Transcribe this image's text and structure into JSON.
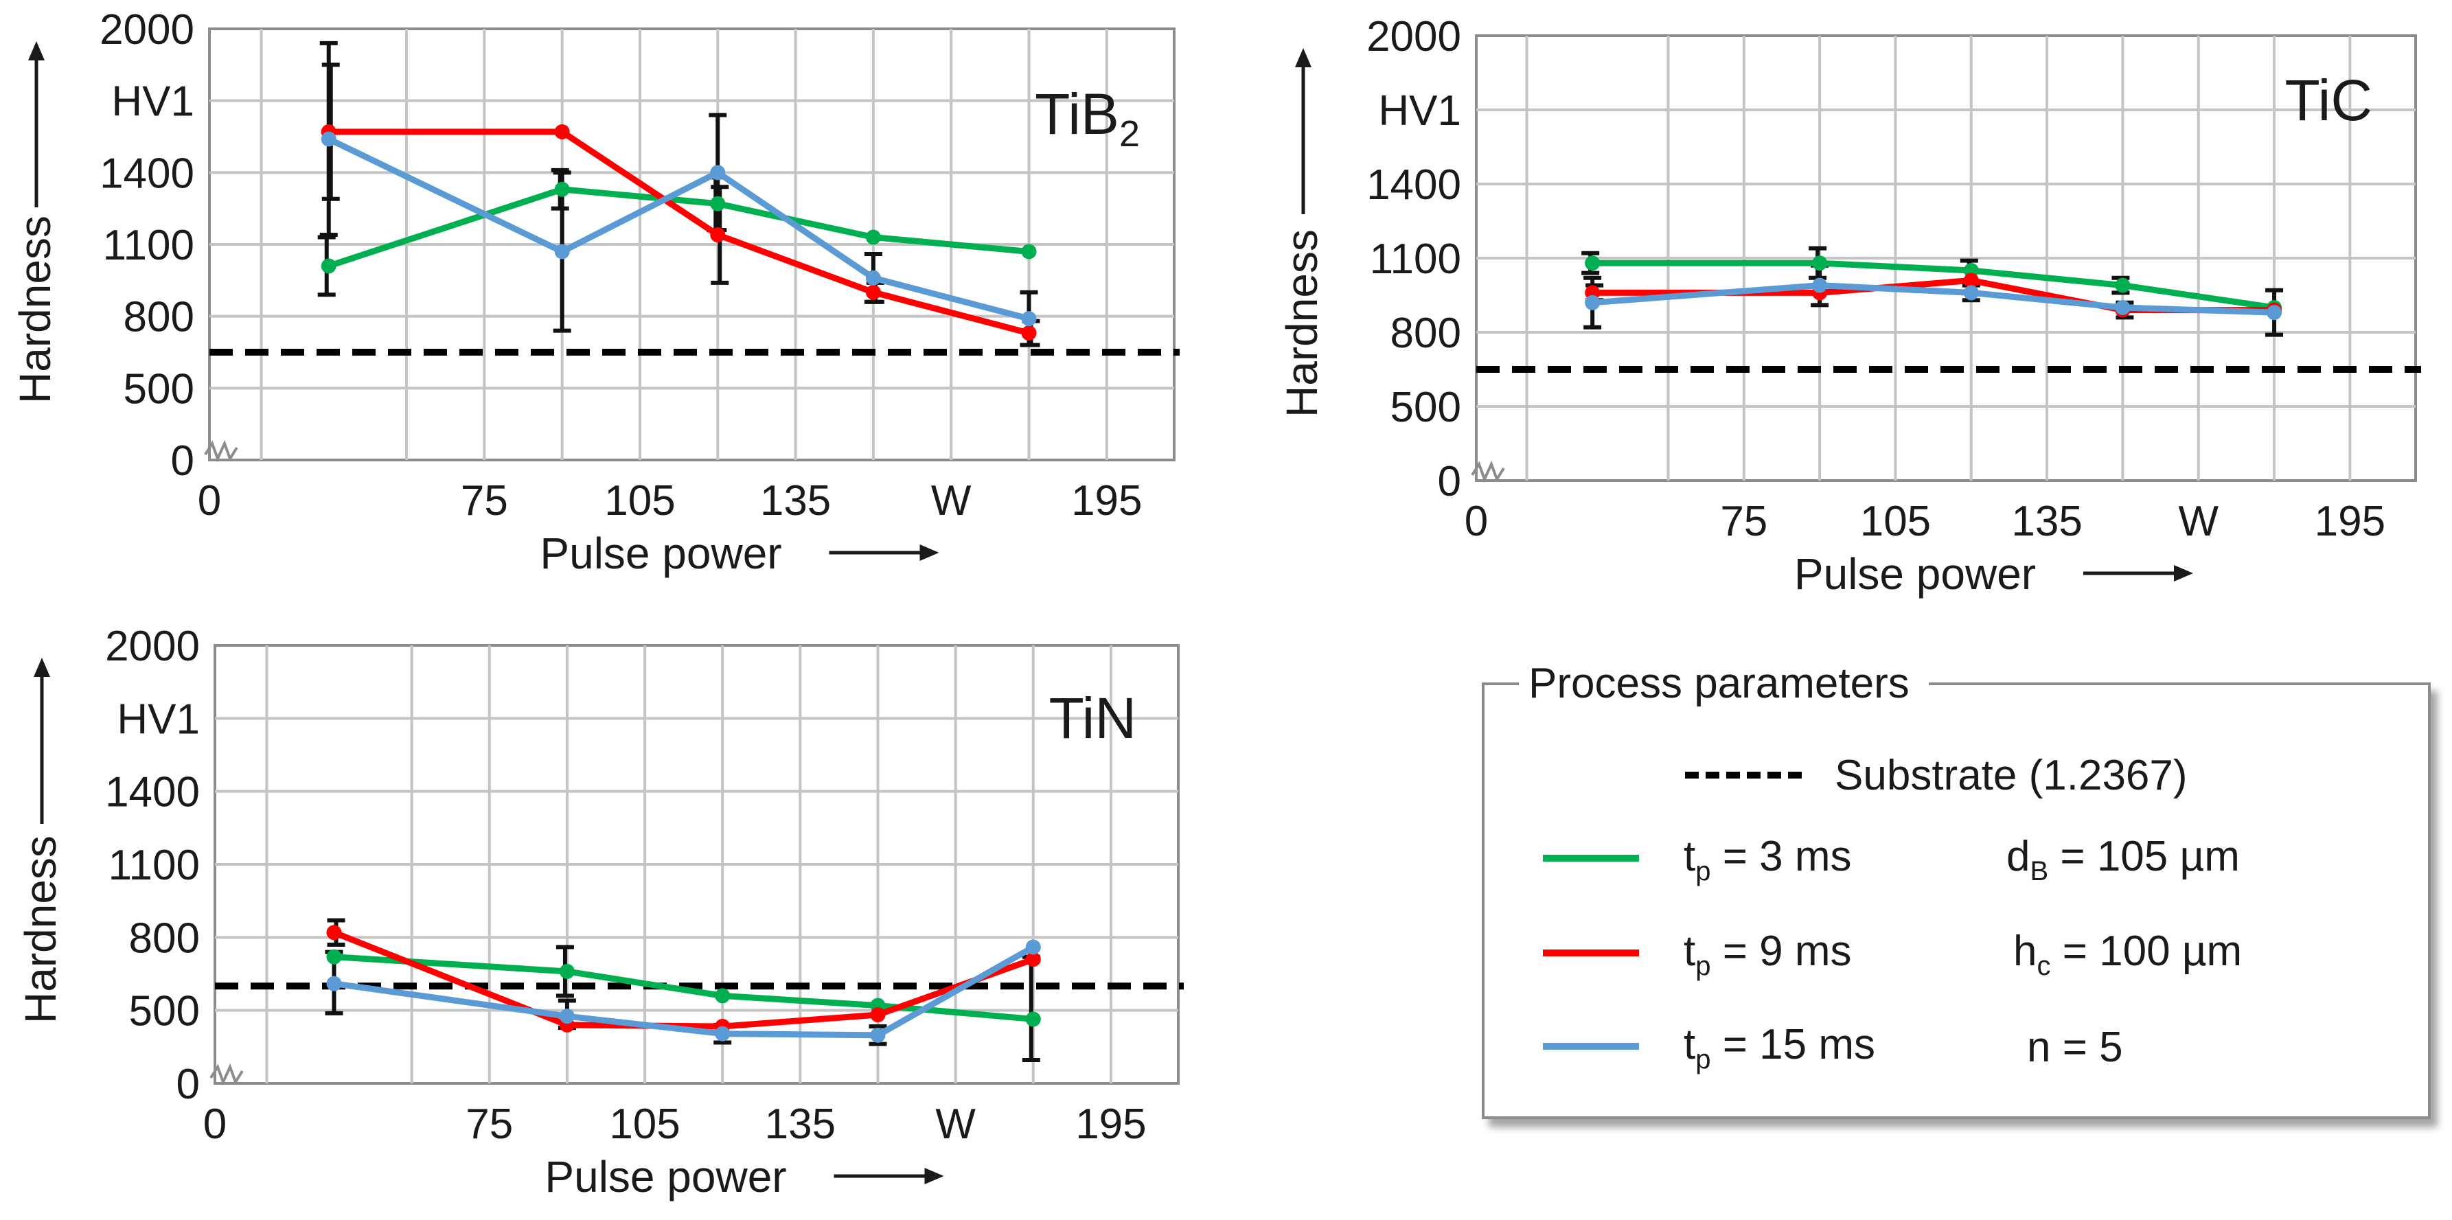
{
  "chart_data": [
    {
      "type": "line",
      "title": "TiB",
      "title_subscript": "2",
      "xlabel": "Pulse power",
      "ylabel": "Hardness",
      "yunit": "HV1",
      "x_ticks": [
        "0",
        "75",
        "105",
        "135",
        "W",
        "195"
      ],
      "y_ticks": [
        "0",
        "500",
        "800",
        "1100",
        "1400",
        "HV1",
        "2000"
      ],
      "categories": [
        "45",
        "90",
        "120",
        "150",
        "180"
      ],
      "substrate": 650,
      "series": [
        {
          "name": "tp = 3 ms",
          "color": "#00b050",
          "values": [
            1010,
            1330,
            1270,
            1130,
            1070
          ],
          "errors": [
            120,
            80,
            110,
            0,
            0
          ]
        },
        {
          "name": "tp = 9 ms",
          "color": "#ff0000",
          "values": [
            1570,
            1570,
            1140,
            900,
            730
          ],
          "errors": [
            280,
            0,
            200,
            40,
            50
          ]
        },
        {
          "name": "tp = 15 ms",
          "color": "#5b9bd5",
          "values": [
            1540,
            1070,
            1400,
            960,
            790
          ],
          "errors": [
            400,
            330,
            240,
            100,
            110
          ]
        }
      ]
    },
    {
      "type": "line",
      "title": "TiC",
      "xlabel": "Pulse power",
      "ylabel": "Hardness",
      "yunit": "HV1",
      "x_ticks": [
        "0",
        "75",
        "105",
        "135",
        "W",
        "195"
      ],
      "y_ticks": [
        "0",
        "500",
        "800",
        "1100",
        "1400",
        "HV1",
        "2000"
      ],
      "categories": [
        "45",
        "90",
        "120",
        "150",
        "180"
      ],
      "substrate": 650,
      "series": [
        {
          "name": "tp = 3 ms",
          "color": "#00b050",
          "values": [
            1080,
            1080,
            1050,
            990,
            900
          ],
          "errors": [
            40,
            60,
            40,
            30,
            0
          ]
        },
        {
          "name": "tp = 9 ms",
          "color": "#ff0000",
          "values": [
            960,
            960,
            1010,
            890,
            890
          ],
          "errors": [
            30,
            0,
            0,
            30,
            0
          ]
        },
        {
          "name": "tp = 15 ms",
          "color": "#5b9bd5",
          "values": [
            920,
            990,
            960,
            900,
            880
          ],
          "errors": [
            100,
            80,
            30,
            0,
            90
          ]
        }
      ]
    },
    {
      "type": "line",
      "title": "TiN",
      "xlabel": "Pulse power",
      "ylabel": "Hardness",
      "yunit": "HV1",
      "x_ticks": [
        "0",
        "75",
        "105",
        "135",
        "W",
        "195"
      ],
      "y_ticks": [
        "0",
        "500",
        "800",
        "1100",
        "1400",
        "HV1",
        "2000"
      ],
      "categories": [
        "45",
        "90",
        "120",
        "150",
        "180"
      ],
      "substrate": 600,
      "series": [
        {
          "name": "tp = 3 ms",
          "color": "#00b050",
          "values": [
            720,
            660,
            560,
            520,
            440
          ],
          "errors": [
            0,
            100,
            0,
            0,
            280
          ]
        },
        {
          "name": "tp = 9 ms",
          "color": "#ff0000",
          "values": [
            820,
            400,
            390,
            470,
            710
          ],
          "errors": [
            50,
            0,
            0,
            0,
            0
          ]
        },
        {
          "name": "tp = 15 ms",
          "color": "#5b9bd5",
          "values": [
            610,
            460,
            340,
            330,
            760
          ],
          "errors": [
            130,
            80,
            60,
            60,
            0
          ]
        }
      ]
    }
  ],
  "legend": {
    "title": "Process parameters",
    "substrate_label": "Substrate (1.2367)",
    "rows": [
      {
        "color": "#00b050",
        "t_main": "t",
        "t_sub": "p",
        "t_rest": " = 3 ms",
        "p_main": "d",
        "p_sub": "B",
        "p_rest": " = 105 µm"
      },
      {
        "color": "#ff0000",
        "t_main": "t",
        "t_sub": "p",
        "t_rest": " = 9 ms",
        "p_main": "h",
        "p_sub": "c",
        "p_rest": " = 100 µm"
      },
      {
        "color": "#5b9bd5",
        "t_main": "t",
        "t_sub": "p",
        "t_rest": " = 15 ms",
        "p_main": "n = 5",
        "p_sub": "",
        "p_rest": ""
      }
    ]
  }
}
